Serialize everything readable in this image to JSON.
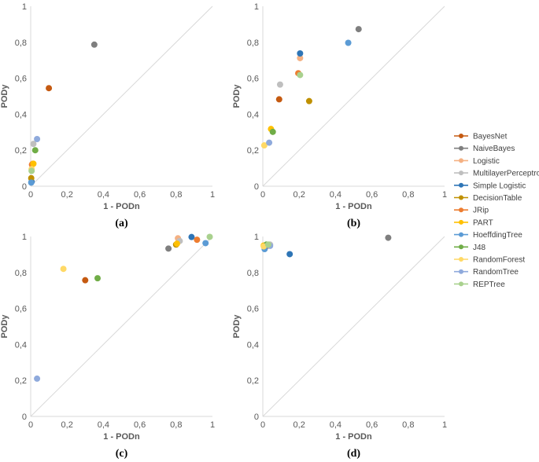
{
  "chart_data": [
    {
      "type": "scatter",
      "panel_label": "(a)",
      "xlabel": "1 - PODn",
      "ylabel": "PODy",
      "xlim": [
        0,
        1
      ],
      "ylim": [
        0,
        1
      ],
      "xticks": [
        "0",
        "0,2",
        "0,4",
        "0,6",
        "0,8",
        "1"
      ],
      "yticks": [
        "0",
        "0,2",
        "0,4",
        "0,6",
        "0,8",
        "1"
      ],
      "diagonal": true,
      "points": [
        {
          "series": "BayesNet",
          "x": 0.1,
          "y": 0.545
        },
        {
          "series": "NaiveBayes",
          "x": 0.35,
          "y": 0.787
        },
        {
          "series": "Logistic",
          "x": 0.01,
          "y": 0.125
        },
        {
          "series": "MultilayerPerceptron",
          "x": 0.015,
          "y": 0.235
        },
        {
          "series": "Simple Logistic",
          "x": 0.005,
          "y": 0.025
        },
        {
          "series": "DecisionTable",
          "x": 0.003,
          "y": 0.045
        },
        {
          "series": "JRip",
          "x": 0.007,
          "y": 0.12
        },
        {
          "series": "PART",
          "x": 0.015,
          "y": 0.125
        },
        {
          "series": "HoeffdingTree",
          "x": 0.003,
          "y": 0.02
        },
        {
          "series": "J48",
          "x": 0.025,
          "y": 0.2
        },
        {
          "series": "RandomForest",
          "x": 0.005,
          "y": 0.095
        },
        {
          "series": "RandomTree",
          "x": 0.035,
          "y": 0.262
        },
        {
          "series": "REPTree",
          "x": 0.005,
          "y": 0.085
        }
      ]
    },
    {
      "type": "scatter",
      "panel_label": "(b)",
      "xlabel": "1 - PODn",
      "ylabel": "PODy",
      "xlim": [
        0,
        1
      ],
      "ylim": [
        0,
        1
      ],
      "xticks": [
        "0",
        "0,2",
        "0,4",
        "0,6",
        "0,8",
        "1"
      ],
      "yticks": [
        "0",
        "0,2",
        "0,4",
        "0,6",
        "0,8",
        "1"
      ],
      "diagonal": true,
      "points": [
        {
          "series": "BayesNet",
          "x": 0.09,
          "y": 0.483
        },
        {
          "series": "NaiveBayes",
          "x": 0.527,
          "y": 0.873
        },
        {
          "series": "Logistic",
          "x": 0.205,
          "y": 0.712
        },
        {
          "series": "MultilayerPerceptron",
          "x": 0.095,
          "y": 0.565
        },
        {
          "series": "Simple Logistic",
          "x": 0.205,
          "y": 0.738
        },
        {
          "series": "DecisionTable",
          "x": 0.255,
          "y": 0.473
        },
        {
          "series": "JRip",
          "x": 0.195,
          "y": 0.628
        },
        {
          "series": "PART",
          "x": 0.045,
          "y": 0.318
        },
        {
          "series": "HoeffdingTree",
          "x": 0.47,
          "y": 0.797
        },
        {
          "series": "J48",
          "x": 0.055,
          "y": 0.302
        },
        {
          "series": "RandomForest",
          "x": 0.008,
          "y": 0.227
        },
        {
          "series": "RandomTree",
          "x": 0.035,
          "y": 0.242
        },
        {
          "series": "REPTree",
          "x": 0.205,
          "y": 0.618
        }
      ]
    },
    {
      "type": "scatter",
      "panel_label": "(c)",
      "xlabel": "1 - PODn",
      "ylabel": "PODy",
      "xlim": [
        0,
        1
      ],
      "ylim": [
        0,
        1
      ],
      "xticks": [
        "0",
        "0,2",
        "0,4",
        "0,6",
        "0,8",
        "1"
      ],
      "yticks": [
        "0",
        "0,2",
        "0,4",
        "0,6",
        "0,8",
        "1"
      ],
      "diagonal": true,
      "points": [
        {
          "series": "BayesNet",
          "x": 0.3,
          "y": 0.757
        },
        {
          "series": "NaiveBayes",
          "x": 0.758,
          "y": 0.933
        },
        {
          "series": "Logistic",
          "x": 0.81,
          "y": 0.99
        },
        {
          "series": "MultilayerPerceptron",
          "x": 0.82,
          "y": 0.975
        },
        {
          "series": "Simple Logistic",
          "x": 0.885,
          "y": 0.997
        },
        {
          "series": "DecisionTable",
          "x": 0.8,
          "y": 0.955
        },
        {
          "series": "JRip",
          "x": 0.915,
          "y": 0.982
        },
        {
          "series": "PART",
          "x": 0.805,
          "y": 0.96
        },
        {
          "series": "HoeffdingTree",
          "x": 0.962,
          "y": 0.963
        },
        {
          "series": "J48",
          "x": 0.368,
          "y": 0.768
        },
        {
          "series": "RandomForest",
          "x": 0.18,
          "y": 0.82
        },
        {
          "series": "RandomTree",
          "x": 0.035,
          "y": 0.21
        },
        {
          "series": "REPTree",
          "x": 0.985,
          "y": 0.998
        }
      ]
    },
    {
      "type": "scatter",
      "panel_label": "(d)",
      "xlabel": "1 - PODn",
      "ylabel": "PODy",
      "xlim": [
        0,
        1
      ],
      "ylim": [
        0,
        1
      ],
      "xticks": [
        "0",
        "0,2",
        "0,4",
        "0,6",
        "0,8",
        "1"
      ],
      "yticks": [
        "0",
        "0,2",
        "0,4",
        "0,6",
        "0,8",
        "1"
      ],
      "diagonal": true,
      "points": [
        {
          "series": "BayesNet",
          "x": 0.01,
          "y": 0.945
        },
        {
          "series": "NaiveBayes",
          "x": 0.69,
          "y": 0.993
        },
        {
          "series": "Logistic",
          "x": 0.02,
          "y": 0.95
        },
        {
          "series": "MultilayerPerceptron",
          "x": 0.04,
          "y": 0.955
        },
        {
          "series": "Simple Logistic",
          "x": 0.148,
          "y": 0.902
        },
        {
          "series": "DecisionTable",
          "x": 0.01,
          "y": 0.94
        },
        {
          "series": "JRip",
          "x": 0.02,
          "y": 0.945
        },
        {
          "series": "PART",
          "x": 0.005,
          "y": 0.95
        },
        {
          "series": "HoeffdingTree",
          "x": 0.01,
          "y": 0.93
        },
        {
          "series": "J48",
          "x": 0.02,
          "y": 0.955
        },
        {
          "series": "RandomForest",
          "x": 0.005,
          "y": 0.945
        },
        {
          "series": "RandomTree",
          "x": 0.04,
          "y": 0.948
        },
        {
          "series": "REPTree",
          "x": 0.03,
          "y": 0.955
        }
      ]
    }
  ],
  "legend": {
    "placement": "right",
    "series": [
      {
        "name": "BayesNet",
        "color": "#C55A11"
      },
      {
        "name": "NaiveBayes",
        "color": "#7F7F7F"
      },
      {
        "name": "Logistic",
        "color": "#F4B183"
      },
      {
        "name": "MultilayerPerceptron",
        "color": "#BFBFBF"
      },
      {
        "name": "Simple Logistic",
        "color": "#2E75B6"
      },
      {
        "name": "DecisionTable",
        "color": "#BF9000"
      },
      {
        "name": "JRip",
        "color": "#ED7D31"
      },
      {
        "name": "PART",
        "color": "#FFC000"
      },
      {
        "name": "HoeffdingTree",
        "color": "#5B9BD5"
      },
      {
        "name": "J48",
        "color": "#70AD47"
      },
      {
        "name": "RandomForest",
        "color": "#FFD966"
      },
      {
        "name": "RandomTree",
        "color": "#8FAADC"
      },
      {
        "name": "REPTree",
        "color": "#A9D18E"
      }
    ]
  },
  "style": {
    "axis_color": "#D9D9D9",
    "diagonal_color": "#D9D9D9",
    "text_color": "#595959"
  }
}
